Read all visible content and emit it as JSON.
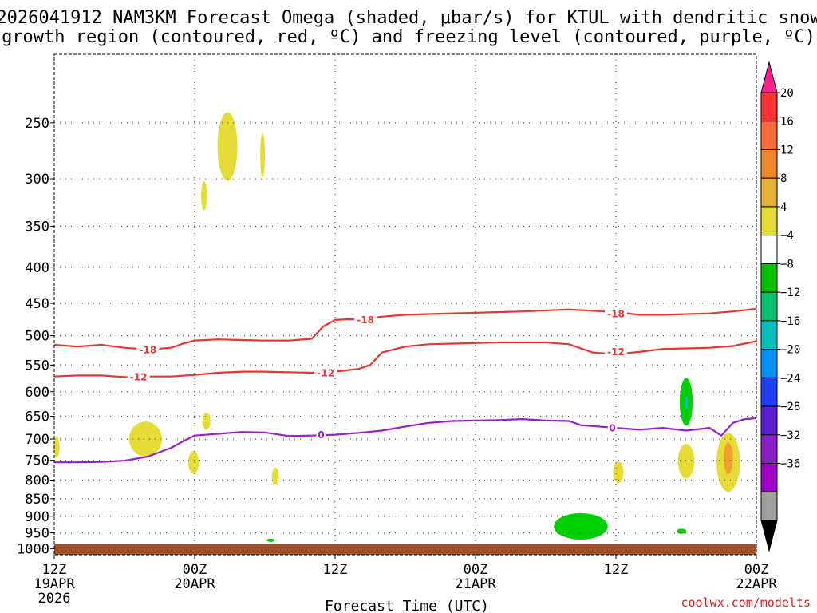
{
  "chart_data": {
    "type": "time-height cross section",
    "title_line1": "2026041912 NAM3KM Forecast Omega (shaded, μbar/s) for KTUL with dendritic snow",
    "title_line2": "growth region (contoured, red, ºC) and freezing level (contoured, purple, ºC)",
    "xlabel": "Forecast Time (UTC)",
    "credit": "coolwx.com/modelts",
    "x_ticks": [
      {
        "h": 0,
        "line1": "12Z",
        "line2": "19APR",
        "line3": "2026"
      },
      {
        "h": 12,
        "line1": "00Z",
        "line2": "20APR",
        "line3": ""
      },
      {
        "h": 24,
        "line1": "12Z",
        "line2": "",
        "line3": ""
      },
      {
        "h": 36,
        "line1": "00Z",
        "line2": "21APR",
        "line3": ""
      },
      {
        "h": 48,
        "line1": "12Z",
        "line2": "",
        "line3": ""
      },
      {
        "h": 60,
        "line1": "00Z",
        "line2": "22APR",
        "line3": ""
      }
    ],
    "xlim_hours": [
      0,
      60
    ],
    "y_ticks": [
      250,
      300,
      350,
      400,
      450,
      500,
      550,
      600,
      650,
      700,
      750,
      800,
      850,
      900,
      950,
      1000
    ],
    "ylim_hPa": [
      200,
      1020
    ],
    "ground_pressure_hPa": 985,
    "colorbar": {
      "labels": [
        "20",
        "16",
        "12",
        "8",
        "4",
        "−4",
        "−8",
        "−12",
        "−16",
        "−20",
        "−24",
        "−28",
        "−32",
        "−36"
      ],
      "colors": [
        "#ff1f8f",
        "#ff3333",
        "#ff6a3a",
        "#f0882a",
        "#e6b035",
        "#e6dc38",
        "#ffffff",
        "#00c000",
        "#00c070",
        "#00c0c0",
        "#0090ff",
        "#1f3fff",
        "#5a1fd0",
        "#8a1fc8",
        "#a000c8",
        "#a0a0a0",
        "#000000"
      ]
    },
    "series": [
      {
        "name": "-18 ºC isotherm",
        "color": "#ee3333",
        "label": "-18",
        "hours": [
          0,
          2,
          4,
          6,
          8,
          10,
          11,
          12,
          14,
          16,
          18,
          20,
          22,
          23,
          24,
          25,
          26,
          28,
          30,
          32,
          36,
          40,
          44,
          48,
          50,
          52,
          56,
          58,
          60
        ],
        "values": [
          515,
          518,
          515,
          520,
          523,
          520,
          513,
          508,
          506,
          507,
          508,
          508,
          505,
          485,
          475,
          474,
          474,
          470,
          467,
          466,
          464,
          462,
          459,
          463,
          467,
          467,
          465,
          462,
          458
        ]
      },
      {
        "name": "-12 ºC isotherm",
        "color": "#ee3333",
        "label": "-12",
        "hours": [
          0,
          2,
          4,
          6,
          8,
          10,
          12,
          14,
          16,
          18,
          20,
          22,
          24,
          26,
          27,
          28,
          30,
          32,
          34,
          36,
          38,
          42,
          44,
          46,
          48,
          50,
          52,
          54,
          56,
          58,
          60
        ],
        "values": [
          571,
          569,
          569,
          572,
          571,
          571,
          568,
          564,
          562,
          562,
          563,
          564,
          562,
          557,
          550,
          528,
          518,
          514,
          513,
          512,
          511,
          511,
          514,
          528,
          531,
          527,
          522,
          521,
          520,
          517,
          509
        ]
      },
      {
        "name": "0 ºC isotherm (freezing level)",
        "color": "#9a1fc8",
        "label": "0",
        "hours": [
          0,
          2,
          4,
          6,
          8,
          10,
          11,
          12,
          14,
          16,
          18,
          20,
          22,
          24,
          26,
          28,
          30,
          32,
          34,
          36,
          38,
          40,
          42,
          44,
          45,
          46,
          48,
          50,
          52,
          54,
          56,
          57,
          58,
          59,
          60
        ],
        "values": [
          755,
          755,
          754,
          751,
          741,
          720,
          705,
          692,
          688,
          684,
          685,
          693,
          692,
          690,
          686,
          681,
          672,
          664,
          660,
          659,
          658,
          656,
          659,
          660,
          669,
          671,
          675,
          679,
          675,
          681,
          675,
          692,
          664,
          656,
          654
        ]
      }
    ],
    "shaded_areas": [
      {
        "name": "omega 4-8",
        "color": "#e6dc38",
        "value_range": "4 to 8",
        "centers": [
          {
            "h": 14.8,
            "p": 270,
            "dh": 0.85,
            "dp": 30
          },
          {
            "h": 17.8,
            "p": 278,
            "dh": 0.2,
            "dp": 20
          },
          {
            "h": 12.8,
            "p": 317,
            "dh": 0.25,
            "dp": 15
          },
          {
            "h": 7.8,
            "p": 700,
            "dh": 1.4,
            "dp": 40
          },
          {
            "h": 13.0,
            "p": 660,
            "dh": 0.35,
            "dp": 18
          },
          {
            "h": 11.9,
            "p": 755,
            "dh": 0.45,
            "dp": 28
          },
          {
            "h": 0.2,
            "p": 718,
            "dh": 0.25,
            "dp": 25
          },
          {
            "h": 18.9,
            "p": 790,
            "dh": 0.3,
            "dp": 22
          },
          {
            "h": 48.2,
            "p": 780,
            "dh": 0.45,
            "dp": 28
          },
          {
            "h": 54.0,
            "p": 752,
            "dh": 0.7,
            "dp": 42
          },
          {
            "h": 57.6,
            "p": 755,
            "dh": 1.0,
            "dp": 72
          }
        ]
      },
      {
        "name": "omega 8-16",
        "color": "#f0a030",
        "value_range": "8 to 16",
        "centers": [
          {
            "h": 57.6,
            "p": 745,
            "dh": 0.4,
            "dp": 38
          }
        ]
      },
      {
        "name": "omega -4 to -8",
        "color": "#00d000",
        "value_range": "-4 to -8",
        "centers": [
          {
            "h": 45.0,
            "p": 930,
            "dh": 2.3,
            "dp": 40
          },
          {
            "h": 54.0,
            "p": 620,
            "dh": 0.55,
            "dp": 48
          },
          {
            "h": 53.6,
            "p": 945,
            "dh": 0.4,
            "dp": 8
          },
          {
            "h": 18.5,
            "p": 973,
            "dh": 0.35,
            "dp": 3
          }
        ]
      },
      {
        "name": "omega -8 to -12",
        "color": "#00c0a0",
        "value_range": "-8 to -12",
        "centers": [
          {
            "h": 54.0,
            "p": 622,
            "dh": 0.15,
            "dp": 15
          }
        ]
      }
    ],
    "contour_labels": [
      {
        "text": "-18",
        "h": 8.0,
        "p": 524,
        "color": "#ee3333"
      },
      {
        "text": "-18",
        "h": 26.6,
        "p": 475,
        "color": "#ee3333"
      },
      {
        "text": "-18",
        "h": 48.0,
        "p": 466,
        "color": "#ee3333"
      },
      {
        "text": "-12",
        "h": 7.2,
        "p": 572,
        "color": "#ee3333"
      },
      {
        "text": "-12",
        "h": 23.2,
        "p": 565,
        "color": "#ee3333"
      },
      {
        "text": "-12",
        "h": 48.0,
        "p": 527,
        "color": "#ee3333"
      },
      {
        "text": "0",
        "h": 22.8,
        "p": 691,
        "color": "#9a1fc8"
      },
      {
        "text": "0",
        "h": 47.7,
        "p": 676,
        "color": "#9a1fc8"
      }
    ]
  }
}
